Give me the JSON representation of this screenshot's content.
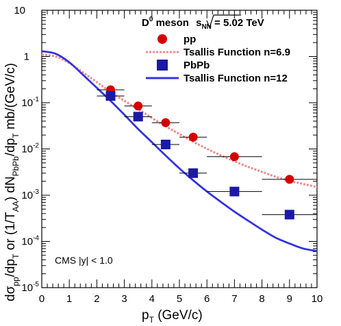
{
  "chart_data": {
    "type": "scatter",
    "title_parts": {
      "meson": "D",
      "meson_sup": "0",
      "meson_word": "meson",
      "energy_prefix": "s",
      "energy_sub": "NN",
      "energy_value": "= 5.02 TeV"
    },
    "xlabel": {
      "main": "p",
      "sub": "T",
      "rest": " (GeV/c)"
    },
    "ylabel_parts": [
      {
        "t": "dσ"
      },
      {
        "t": "pp",
        "sub": true
      },
      {
        "t": "/dp"
      },
      {
        "t": "T",
        "sub": true
      },
      {
        "t": " or (1/T"
      },
      {
        "t": "AA",
        "sub": true
      },
      {
        "t": ") dN"
      },
      {
        "t": "PbPb",
        "sub": true
      },
      {
        "t": "/dp"
      },
      {
        "t": "T",
        "sub": true
      },
      {
        "t": " mb/(GeV/c)"
      }
    ],
    "xlim": [
      0,
      10
    ],
    "ylim": [
      1e-05,
      10
    ],
    "yscale": "log",
    "x_ticks": [
      "0",
      "1",
      "2",
      "3",
      "4",
      "5",
      "6",
      "7",
      "8",
      "9",
      "10"
    ],
    "y_ticks": [
      {
        "base": "10",
        "exp": "-5",
        "value": 1e-05
      },
      {
        "base": "10",
        "exp": "-4",
        "value": 0.0001
      },
      {
        "base": "10",
        "exp": "-3",
        "value": 0.001
      },
      {
        "base": "10",
        "exp": "-2",
        "value": 0.01
      },
      {
        "base": "10",
        "exp": "-1",
        "value": 0.1
      },
      {
        "base": "1",
        "exp": "",
        "value": 1
      },
      {
        "base": "10",
        "exp": "",
        "value": 10
      }
    ],
    "series": [
      {
        "name": "pp",
        "marker": "circle",
        "color": "#d40000",
        "points": [
          {
            "x": 2.5,
            "y": 0.19,
            "xerr": 0.5
          },
          {
            "x": 3.5,
            "y": 0.085,
            "xerr": 0.5
          },
          {
            "x": 4.5,
            "y": 0.037,
            "xerr": 0.5
          },
          {
            "x": 5.5,
            "y": 0.018,
            "xerr": 0.5
          },
          {
            "x": 7.0,
            "y": 0.0068,
            "xerr": 1.0
          },
          {
            "x": 9.0,
            "y": 0.0022,
            "xerr": 1.0
          }
        ]
      },
      {
        "name": "PbPb",
        "marker": "square",
        "color": "#1a1aa6",
        "points": [
          {
            "x": 2.5,
            "y": 0.14,
            "xerr": 0.5
          },
          {
            "x": 3.5,
            "y": 0.05,
            "xerr": 0.5
          },
          {
            "x": 4.5,
            "y": 0.0125,
            "xerr": 0.5
          },
          {
            "x": 5.5,
            "y": 0.003,
            "xerr": 0.5
          },
          {
            "x": 7.0,
            "y": 0.0012,
            "xerr": 1.0
          },
          {
            "x": 9.0,
            "y": 0.00038,
            "xerr": 1.0
          }
        ]
      }
    ],
    "curves": [
      {
        "name": "Tsallis Function n=6.9",
        "style": "dashed",
        "color": "#f08a8a",
        "x": [
          0,
          0.5,
          1,
          1.5,
          2,
          2.5,
          3,
          3.5,
          4,
          4.5,
          5,
          5.5,
          6,
          6.5,
          7,
          7.5,
          8,
          8.5,
          9,
          9.5,
          10
        ],
        "y": [
          1.1,
          1.0,
          0.72,
          0.45,
          0.28,
          0.17,
          0.11,
          0.072,
          0.047,
          0.031,
          0.021,
          0.0143,
          0.0101,
          0.0073,
          0.0054,
          0.0041,
          0.0032,
          0.0025,
          0.00205,
          0.00175,
          0.0015
        ]
      },
      {
        "name": "Tsallis Function n=12",
        "style": "solid",
        "color": "#3333dd",
        "x": [
          0,
          0.5,
          1,
          1.5,
          2,
          2.5,
          3,
          3.5,
          4,
          4.5,
          5,
          5.5,
          6,
          6.5,
          7,
          7.5,
          8,
          8.5,
          9,
          9.5,
          10
        ],
        "y": [
          1.3,
          1.15,
          0.75,
          0.4,
          0.21,
          0.11,
          0.055,
          0.027,
          0.014,
          0.0072,
          0.0038,
          0.0021,
          0.0012,
          0.00072,
          0.00044,
          0.00028,
          0.00018,
          0.00012,
          9e-05,
          7e-05,
          6.2e-05
        ]
      }
    ],
    "legend": [
      {
        "label": "pp",
        "kind": "circle",
        "color": "#d40000"
      },
      {
        "label": "Tsallis Function n=6.9",
        "kind": "dashed",
        "color": "#f08a8a"
      },
      {
        "label": "PbPb",
        "kind": "square",
        "color": "#1a1aa6"
      },
      {
        "label": "Tsallis Function n=12",
        "kind": "solid",
        "color": "#3333dd"
      }
    ],
    "legend_position": "top-right",
    "annotation": "CMS |y| < 1.0",
    "grid": false
  }
}
